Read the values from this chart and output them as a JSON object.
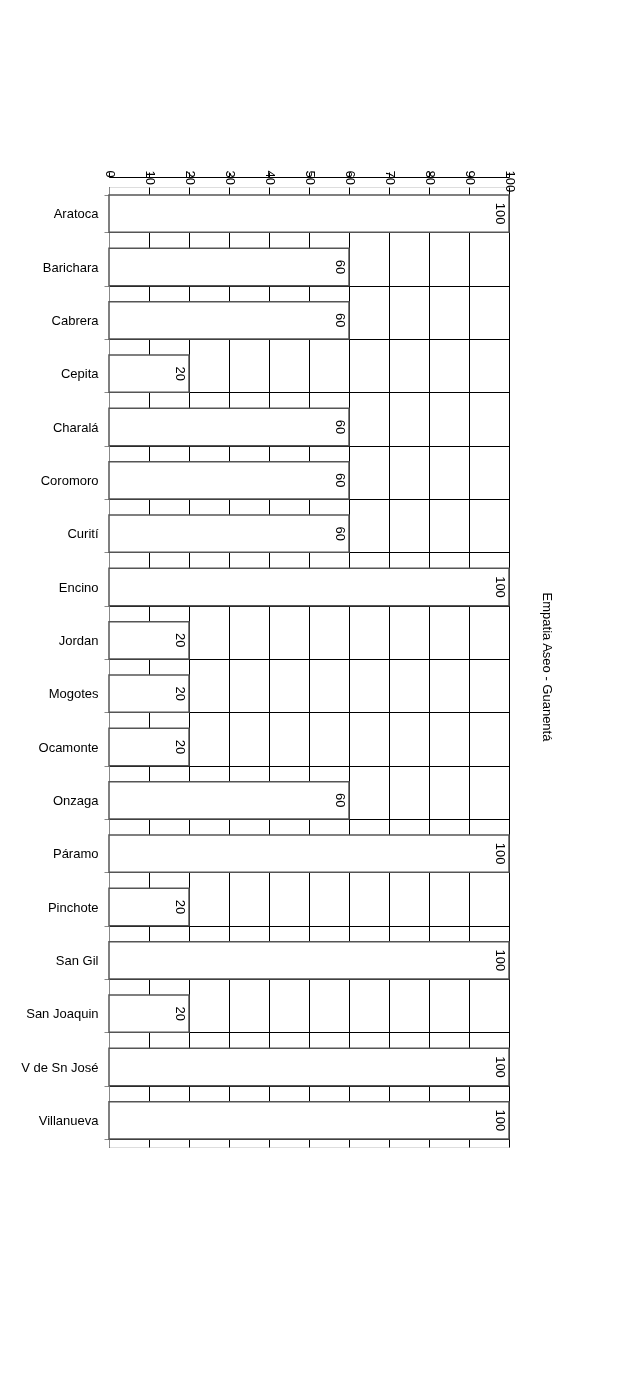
{
  "chart_data": {
    "type": "bar",
    "orientation": "horizontal",
    "title": "Empatia Aseo - Guanentá",
    "categories": [
      "Aratoca",
      "Barichara",
      "Cabrera",
      "Cepita",
      "Charalá",
      "Coromoro",
      "Curití",
      "Encino",
      "Jordan",
      "Mogotes",
      "Ocamonte",
      "Onzaga",
      "Páramo",
      "Pinchote",
      "San Gil",
      "San Joaquin",
      "V de Sn José",
      "Villanueva"
    ],
    "values": [
      100,
      60,
      60,
      20,
      60,
      60,
      60,
      100,
      20,
      20,
      20,
      60,
      100,
      20,
      100,
      20,
      100,
      100
    ],
    "color": "#ffffff",
    "xlim": [
      0,
      100
    ],
    "xticks": [
      0,
      10,
      20,
      30,
      40,
      50,
      60,
      70,
      80,
      90,
      100
    ],
    "grid": true,
    "data_labels": true
  }
}
